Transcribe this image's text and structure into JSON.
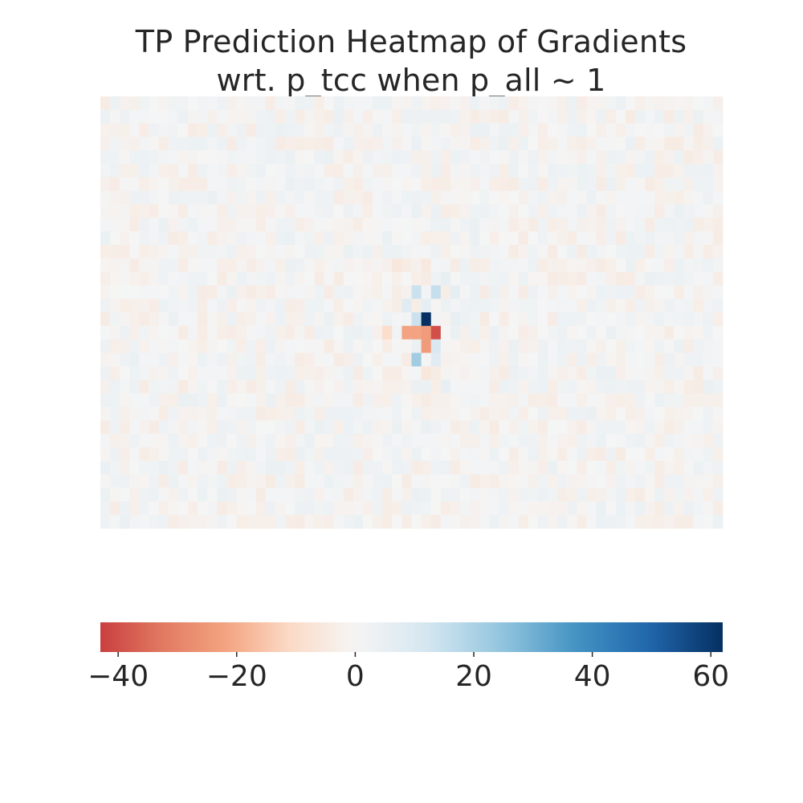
{
  "chart_data": {
    "type": "heatmap",
    "title_lines": [
      "TP Prediction Heatmap of Gradients",
      "wrt. p_tcc when p_all ~ 1"
    ],
    "colormap": "RdBu",
    "colormap_stops": [
      "#c93f3f",
      "#e27b62",
      "#f4a582",
      "#fbdcc8",
      "#f5f5f5",
      "#d4e6f0",
      "#92c5de",
      "#4393c3",
      "#2166ac",
      "#053061"
    ],
    "grid_rows": 32,
    "grid_cols": 64,
    "value_range": [
      -43,
      62
    ],
    "background_noise_range": [
      -4,
      4
    ],
    "hotspots": [
      {
        "row": 16,
        "col": 33,
        "value": 62
      },
      {
        "row": 17,
        "col": 34,
        "value": -40
      },
      {
        "row": 17,
        "col": 31,
        "value": -22
      },
      {
        "row": 17,
        "col": 32,
        "value": -22
      },
      {
        "row": 17,
        "col": 33,
        "value": -24
      },
      {
        "row": 17,
        "col": 29,
        "value": -10
      },
      {
        "row": 18,
        "col": 33,
        "value": -24
      },
      {
        "row": 19,
        "col": 32,
        "value": 22
      },
      {
        "row": 14,
        "col": 32,
        "value": 14
      },
      {
        "row": 14,
        "col": 34,
        "value": 15
      },
      {
        "row": 15,
        "col": 31,
        "value": 8
      },
      {
        "row": 15,
        "col": 33,
        "value": 6
      },
      {
        "row": 16,
        "col": 32,
        "value": 14
      },
      {
        "row": 18,
        "col": 34,
        "value": 10
      },
      {
        "row": 19,
        "col": 34,
        "value": 8
      },
      {
        "row": 12,
        "col": 30,
        "value": -6
      },
      {
        "row": 12,
        "col": 33,
        "value": -5
      },
      {
        "row": 13,
        "col": 35,
        "value": 5
      },
      {
        "row": 14,
        "col": 36,
        "value": 6
      },
      {
        "row": 16,
        "col": 36,
        "value": 5
      },
      {
        "row": 20,
        "col": 33,
        "value": -6
      },
      {
        "row": 21,
        "col": 35,
        "value": 5
      }
    ],
    "colorbar": {
      "orientation": "horizontal",
      "ticks": [
        -40,
        -20,
        0,
        20,
        40,
        60
      ],
      "tick_labels": [
        "−40",
        "−20",
        "0",
        "20",
        "40",
        "60"
      ]
    }
  }
}
